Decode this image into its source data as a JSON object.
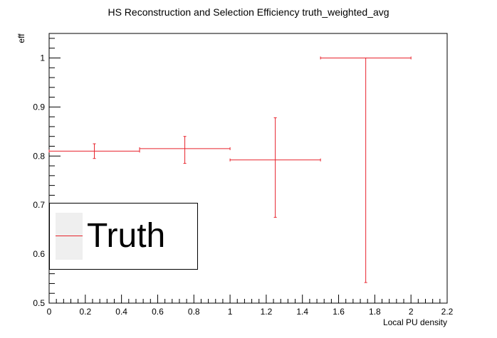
{
  "chart_data": {
    "type": "scatter",
    "title": "HS Reconstruction and Selection Efficiency truth_weighted_avg",
    "xlabel": "Local PU density",
    "ylabel": "eff",
    "xlim": [
      0,
      2.2
    ],
    "ylim": [
      0.5,
      1.05
    ],
    "x_ticks": [
      "0",
      "0.2",
      "0.4",
      "0.6",
      "0.8",
      "1",
      "1.2",
      "1.4",
      "1.6",
      "1.8",
      "2",
      "2.2"
    ],
    "y_ticks": [
      "0.5",
      "0.6",
      "0.7",
      "0.8",
      "0.9",
      "1"
    ],
    "grid": false,
    "legend_position": "lower-left",
    "series": [
      {
        "name": "Truth",
        "color": "#e8232c",
        "points": [
          {
            "x": 0.25,
            "x_low": 0.0,
            "x_high": 0.5,
            "y": 0.81,
            "y_low": 0.795,
            "y_high": 0.825
          },
          {
            "x": 0.75,
            "x_low": 0.5,
            "x_high": 1.0,
            "y": 0.815,
            "y_low": 0.785,
            "y_high": 0.84
          },
          {
            "x": 1.25,
            "x_low": 1.0,
            "x_high": 1.5,
            "y": 0.792,
            "y_low": 0.675,
            "y_high": 0.878
          },
          {
            "x": 1.75,
            "x_low": 1.5,
            "x_high": 2.0,
            "y": 1.0,
            "y_low": 0.542,
            "y_high": 1.0
          }
        ]
      }
    ]
  }
}
